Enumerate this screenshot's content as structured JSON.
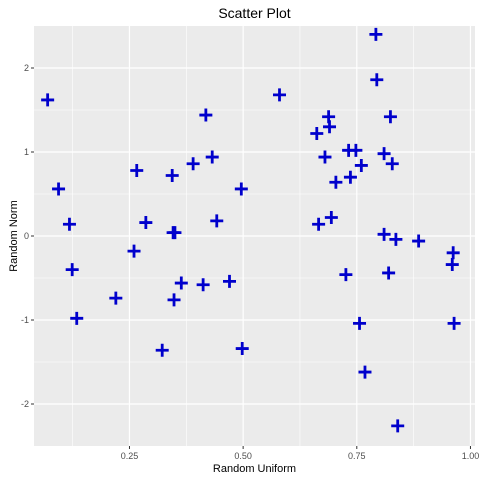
{
  "chart_data": {
    "type": "scatter",
    "title": "Scatter Plot",
    "xlabel": "Random Uniform",
    "ylabel": "Random Norm",
    "xlim": [
      0.04,
      1.01
    ],
    "ylim": [
      -2.5,
      2.5
    ],
    "xticks": [
      0.25,
      0.5,
      0.75,
      1.0
    ],
    "xtick_labels": [
      "0.25",
      "0.50",
      "0.75",
      "1.00"
    ],
    "yticks": [
      -2,
      -1,
      0,
      1,
      2
    ],
    "yticks_labels": [
      "-2",
      "-1",
      "0",
      "1",
      "2"
    ],
    "grid": true,
    "marker": "plus",
    "point_color": "#0000cc",
    "panel_color": "#ebebeb",
    "grid_color": "#ffffff",
    "x": [
      0.07,
      0.094,
      0.118,
      0.124,
      0.134,
      0.22,
      0.26,
      0.266,
      0.286,
      0.322,
      0.344,
      0.346,
      0.348,
      0.35,
      0.364,
      0.39,
      0.412,
      0.418,
      0.432,
      0.442,
      0.47,
      0.496,
      0.498,
      0.58,
      0.662,
      0.666,
      0.68,
      0.688,
      0.69,
      0.694,
      0.704,
      0.726,
      0.732,
      0.736,
      0.748,
      0.756,
      0.76,
      0.768,
      0.792,
      0.794,
      0.81,
      0.81,
      0.82,
      0.824,
      0.828,
      0.836,
      0.84,
      0.886,
      0.96,
      0.962,
      0.964
    ],
    "y": [
      1.62,
      0.56,
      0.14,
      -0.4,
      -0.98,
      -0.74,
      -0.18,
      0.78,
      0.16,
      -1.36,
      0.72,
      0.04,
      -0.76,
      0.04,
      -0.56,
      0.86,
      -0.58,
      1.44,
      0.94,
      0.18,
      -0.54,
      0.56,
      -1.34,
      1.68,
      1.22,
      0.14,
      0.94,
      1.42,
      1.3,
      0.22,
      0.64,
      -0.46,
      1.02,
      0.7,
      1.02,
      -1.04,
      0.84,
      -1.62,
      2.4,
      1.86,
      0.98,
      0.02,
      -0.44,
      1.42,
      0.86,
      -0.04,
      -2.26,
      -0.06,
      -0.34,
      -0.2,
      -1.04
    ]
  }
}
